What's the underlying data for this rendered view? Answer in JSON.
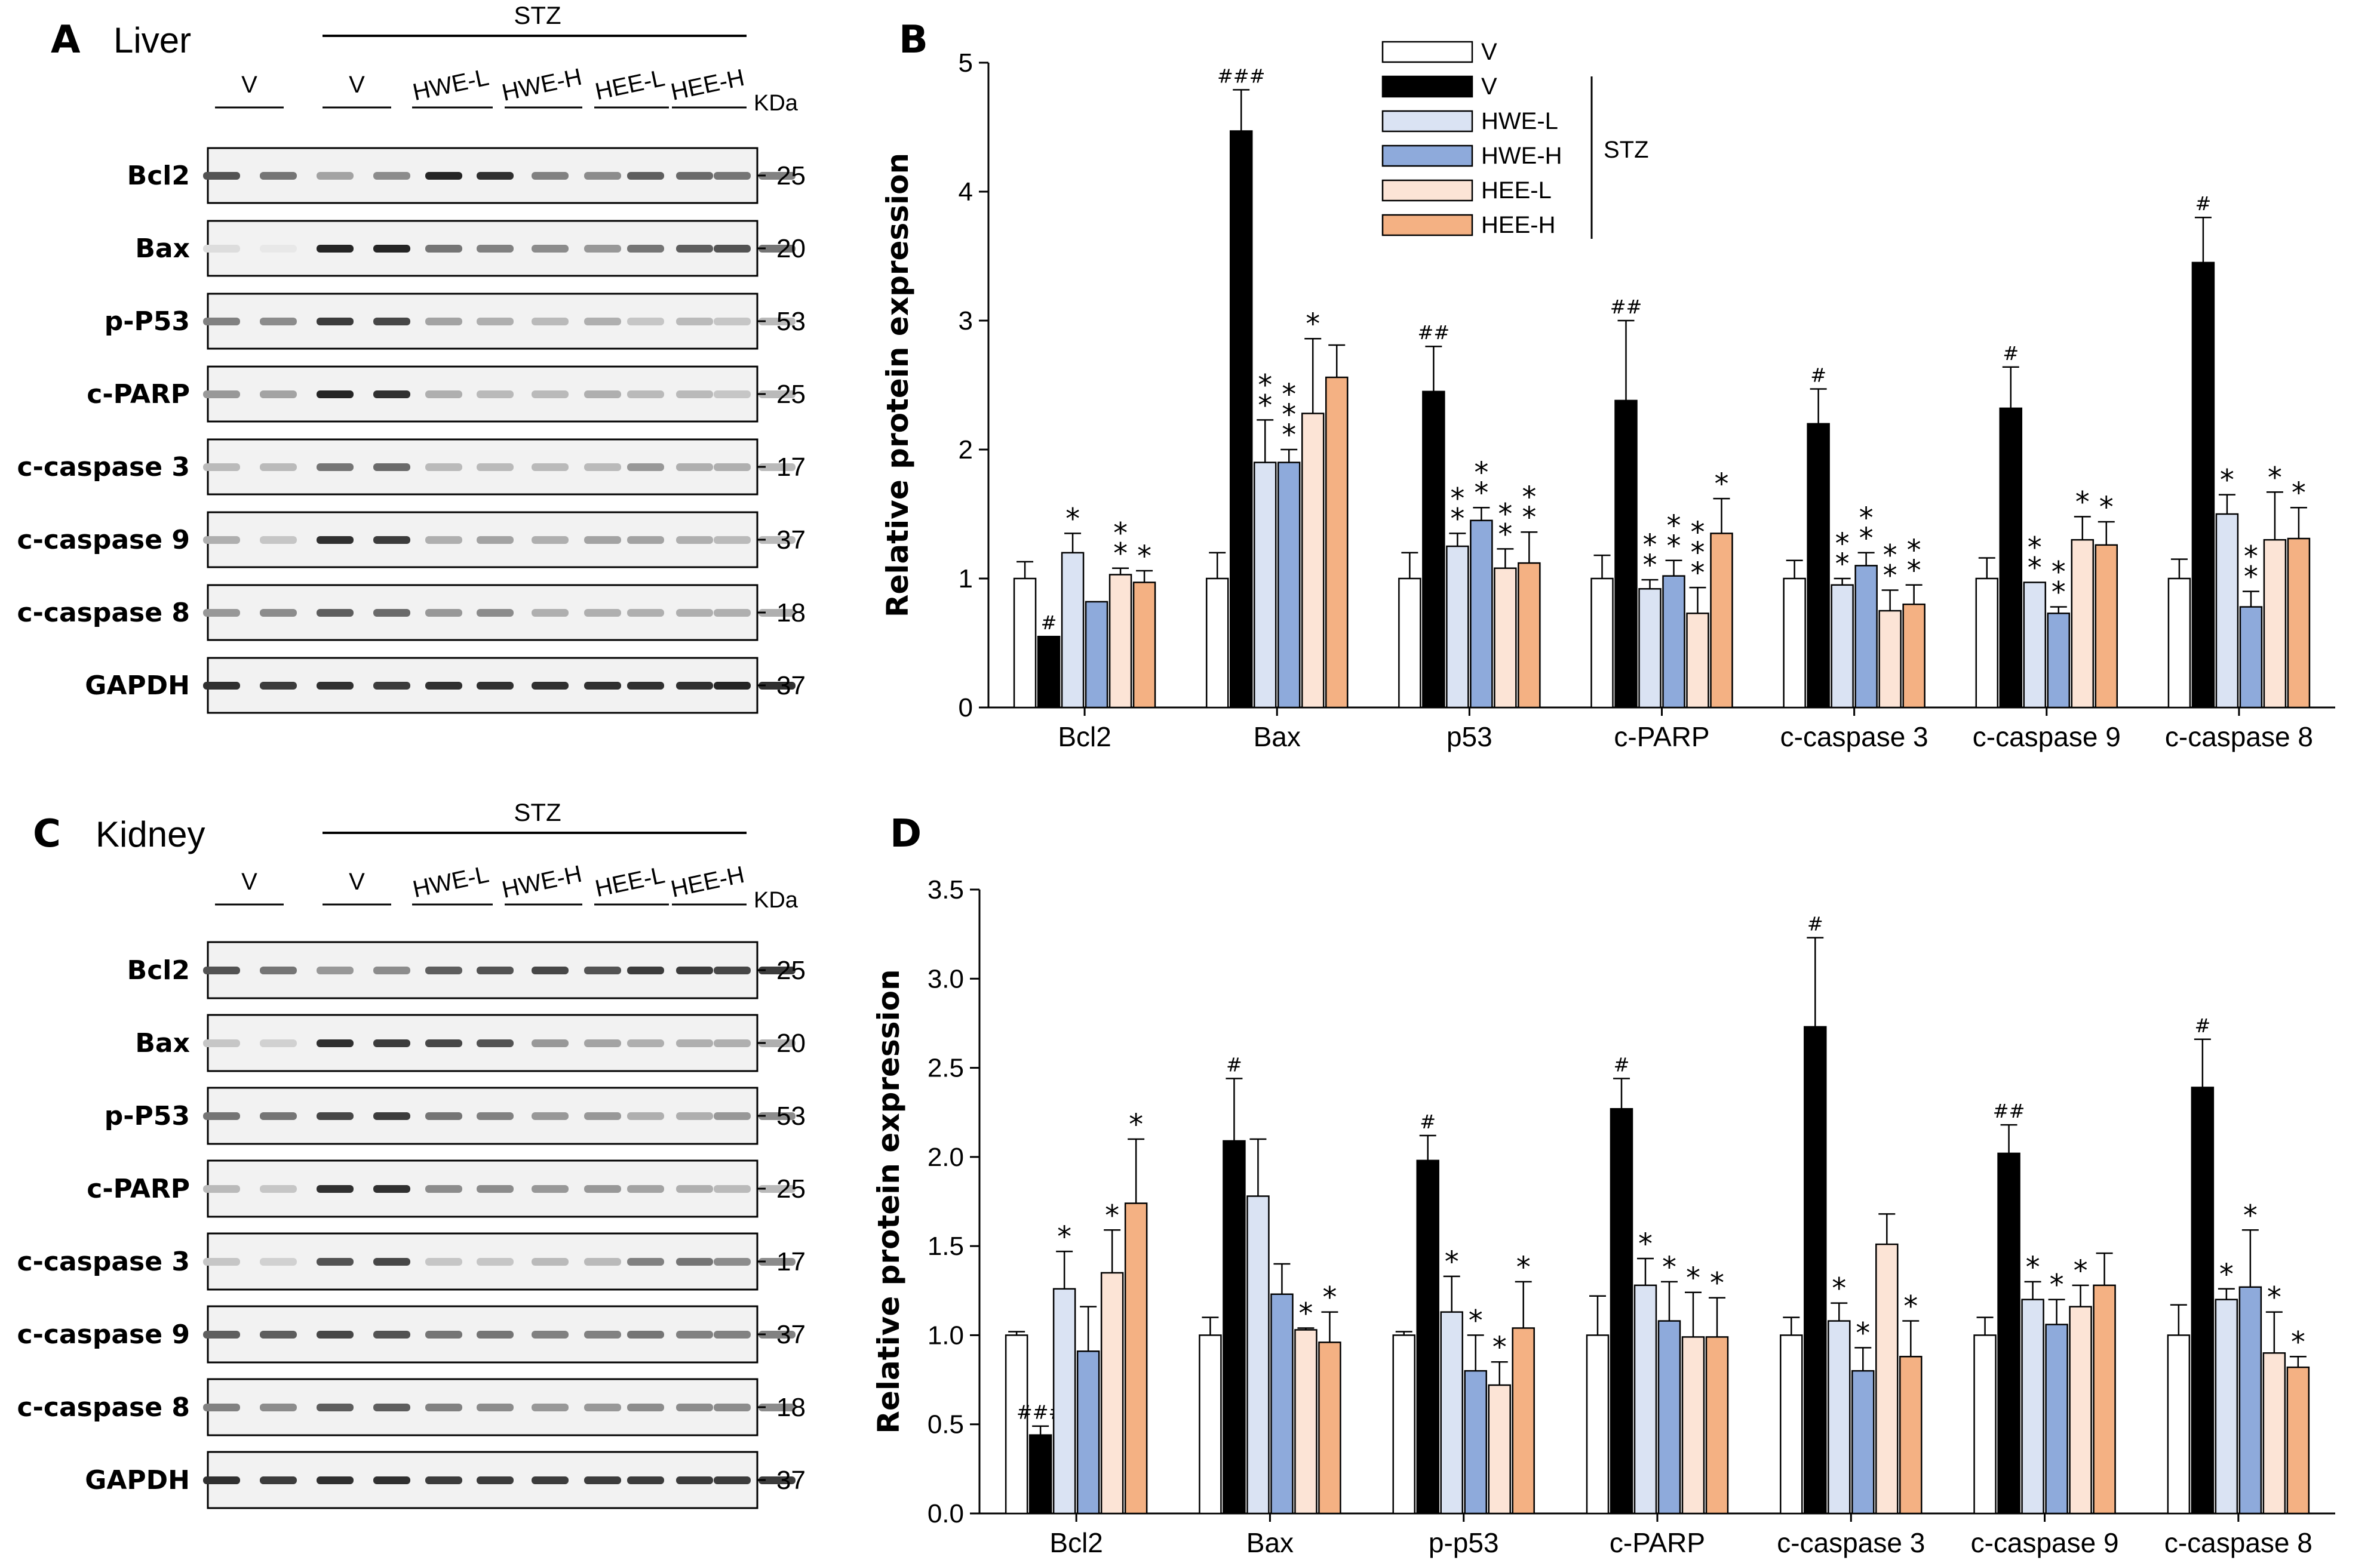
{
  "panels": {
    "A": {
      "letter": "A",
      "tissue": "Liver"
    },
    "B": {
      "letter": "B"
    },
    "C": {
      "letter": "C",
      "tissue": "Kidney"
    },
    "D": {
      "letter": "D"
    }
  },
  "blot_header": {
    "stz": "STZ",
    "groups": [
      "V",
      "V",
      "HWE-L",
      "HWE-H",
      "HEE-L",
      "HEE-H"
    ],
    "kda": "KDa"
  },
  "liver_blot": {
    "proteins": [
      "Bcl2",
      "Bax",
      "p-P53",
      "c-PARP",
      "c-caspase 3",
      "c-caspase 9",
      "c-caspase 8",
      "GAPDH"
    ],
    "kda": [
      "25",
      "20",
      "53",
      "25",
      "17",
      "37",
      "18",
      "37"
    ],
    "intensity": [
      [
        0.75,
        0.6,
        0.4,
        0.5,
        0.95,
        0.9,
        0.55,
        0.5,
        0.7,
        0.65,
        0.6,
        0.55
      ],
      [
        0.15,
        0.1,
        0.95,
        0.95,
        0.6,
        0.55,
        0.5,
        0.45,
        0.6,
        0.7,
        0.75,
        0.6
      ],
      [
        0.55,
        0.5,
        0.85,
        0.8,
        0.4,
        0.35,
        0.3,
        0.35,
        0.25,
        0.3,
        0.25,
        0.3
      ],
      [
        0.45,
        0.4,
        0.95,
        0.9,
        0.35,
        0.3,
        0.3,
        0.35,
        0.3,
        0.3,
        0.25,
        0.3
      ],
      [
        0.3,
        0.3,
        0.6,
        0.65,
        0.3,
        0.3,
        0.3,
        0.3,
        0.45,
        0.35,
        0.35,
        0.3
      ],
      [
        0.35,
        0.25,
        0.9,
        0.85,
        0.35,
        0.4,
        0.35,
        0.4,
        0.4,
        0.35,
        0.3,
        0.3
      ],
      [
        0.45,
        0.5,
        0.7,
        0.65,
        0.45,
        0.5,
        0.35,
        0.35,
        0.35,
        0.35,
        0.35,
        0.35
      ],
      [
        0.9,
        0.85,
        0.9,
        0.85,
        0.9,
        0.9,
        0.9,
        0.9,
        0.9,
        0.9,
        0.95,
        0.9
      ]
    ]
  },
  "kidney_blot": {
    "proteins": [
      "Bcl2",
      "Bax",
      "p-P53",
      "c-PARP",
      "c-caspase 3",
      "c-caspase 9",
      "c-caspase 8",
      "GAPDH"
    ],
    "kda": [
      "25",
      "20",
      "53",
      "25",
      "17",
      "37",
      "18",
      "37"
    ],
    "intensity": [
      [
        0.75,
        0.6,
        0.45,
        0.5,
        0.7,
        0.75,
        0.8,
        0.75,
        0.85,
        0.85,
        0.8,
        0.85
      ],
      [
        0.25,
        0.2,
        0.9,
        0.85,
        0.8,
        0.75,
        0.45,
        0.4,
        0.35,
        0.35,
        0.35,
        0.35
      ],
      [
        0.6,
        0.6,
        0.8,
        0.85,
        0.6,
        0.55,
        0.45,
        0.45,
        0.35,
        0.35,
        0.45,
        0.5
      ],
      [
        0.3,
        0.25,
        0.9,
        0.9,
        0.5,
        0.5,
        0.45,
        0.45,
        0.4,
        0.35,
        0.3,
        0.3
      ],
      [
        0.25,
        0.2,
        0.75,
        0.8,
        0.25,
        0.25,
        0.3,
        0.3,
        0.55,
        0.6,
        0.5,
        0.5
      ],
      [
        0.7,
        0.7,
        0.8,
        0.75,
        0.6,
        0.6,
        0.55,
        0.55,
        0.6,
        0.55,
        0.55,
        0.55
      ],
      [
        0.55,
        0.5,
        0.7,
        0.7,
        0.55,
        0.5,
        0.45,
        0.45,
        0.5,
        0.5,
        0.5,
        0.5
      ],
      [
        0.9,
        0.85,
        0.9,
        0.9,
        0.85,
        0.85,
        0.85,
        0.85,
        0.85,
        0.85,
        0.85,
        0.85
      ]
    ]
  },
  "colors": {
    "V": "#ffffff",
    "STZ_V": "#000000",
    "HWE-L": "#dae3f3",
    "HWE-H": "#8eaadb",
    "HEE-L": "#fce4d6",
    "HEE-H": "#f4b183"
  },
  "chart_data": [
    {
      "type": "bar",
      "panel": "B",
      "title": "",
      "xlabel": "",
      "ylabel": "Relative protein expression",
      "ylim": [
        0,
        5
      ],
      "yticks": [
        "0",
        "1",
        "2",
        "3",
        "4",
        "5"
      ],
      "categories": [
        "Bcl2",
        "Bax",
        "p53",
        "c-PARP",
        "c-caspase 3",
        "c-caspase 9",
        "c-caspase 8"
      ],
      "legend": {
        "entries": [
          "V",
          "V",
          "HWE-L",
          "HWE-H",
          "HEE-L",
          "HEE-H"
        ],
        "group_label": "STZ",
        "placement": "top-center"
      },
      "series": [
        {
          "name": "V",
          "values": [
            1.0,
            1.0,
            1.0,
            1.0,
            1.0,
            1.0,
            1.0
          ],
          "errors": [
            0.13,
            0.2,
            0.2,
            0.18,
            0.14,
            0.16,
            0.15
          ],
          "marks": [
            "",
            "",
            "",
            "",
            "",
            "",
            ""
          ]
        },
        {
          "name": "STZ V",
          "values": [
            0.55,
            4.47,
            2.45,
            2.38,
            2.2,
            2.32,
            3.45
          ],
          "errors": [
            0.0,
            0.32,
            0.35,
            0.62,
            0.27,
            0.32,
            0.35
          ],
          "marks": [
            "#",
            "###",
            "##",
            "##",
            "#",
            "#",
            "#"
          ]
        },
        {
          "name": "HWE-L",
          "values": [
            1.2,
            1.9,
            1.25,
            0.92,
            0.95,
            0.97,
            1.5
          ],
          "errors": [
            0.15,
            0.33,
            0.1,
            0.07,
            0.05,
            0.0,
            0.15
          ],
          "marks": [
            "*",
            "**",
            "**",
            "**",
            "**",
            "**",
            "*"
          ]
        },
        {
          "name": "HWE-H",
          "values": [
            0.82,
            1.9,
            1.45,
            1.02,
            1.1,
            0.73,
            0.78
          ],
          "errors": [
            0.0,
            0.1,
            0.1,
            0.12,
            0.1,
            0.05,
            0.12
          ],
          "marks": [
            "",
            "***",
            "**",
            "**",
            "**",
            "**",
            "**"
          ]
        },
        {
          "name": "HEE-L",
          "values": [
            1.03,
            2.28,
            1.08,
            0.73,
            0.75,
            1.3,
            1.3
          ],
          "errors": [
            0.05,
            0.58,
            0.15,
            0.2,
            0.16,
            0.18,
            0.37
          ],
          "marks": [
            "**",
            "*",
            "**",
            "***",
            "**",
            "*",
            "*"
          ]
        },
        {
          "name": "HEE-H",
          "values": [
            0.97,
            2.56,
            1.12,
            1.35,
            0.8,
            1.26,
            1.31
          ],
          "errors": [
            0.09,
            0.25,
            0.24,
            0.27,
            0.15,
            0.18,
            0.24
          ],
          "marks": [
            "*",
            "",
            "**",
            "*",
            "**",
            "*",
            "*"
          ]
        }
      ]
    },
    {
      "type": "bar",
      "panel": "D",
      "title": "",
      "xlabel": "",
      "ylabel": "Relative protein expression",
      "ylim": [
        0,
        3.5
      ],
      "yticks": [
        "0.0",
        "0.5",
        "1.0",
        "1.5",
        "2.0",
        "2.5",
        "3.0",
        "3.5"
      ],
      "categories": [
        "Bcl2",
        "Bax",
        "p-p53",
        "c-PARP",
        "c-caspase 3",
        "c-caspase 9",
        "c-caspase 8"
      ],
      "series": [
        {
          "name": "V",
          "values": [
            1.0,
            1.0,
            1.0,
            1.0,
            1.0,
            1.0,
            1.0
          ],
          "errors": [
            0.02,
            0.1,
            0.02,
            0.22,
            0.1,
            0.1,
            0.17
          ],
          "marks": [
            "",
            "",
            "",
            "",
            "",
            "",
            ""
          ]
        },
        {
          "name": "STZ V",
          "values": [
            0.44,
            2.09,
            1.98,
            2.27,
            2.73,
            2.02,
            2.39
          ],
          "errors": [
            0.05,
            0.35,
            0.14,
            0.17,
            0.5,
            0.16,
            0.27
          ],
          "marks": [
            "###",
            "#",
            "#",
            "#",
            "#",
            "##",
            "#"
          ]
        },
        {
          "name": "HWE-L",
          "values": [
            1.26,
            1.78,
            1.13,
            1.28,
            1.08,
            1.2,
            1.2
          ],
          "errors": [
            0.21,
            0.32,
            0.2,
            0.15,
            0.1,
            0.1,
            0.06
          ],
          "marks": [
            "*",
            "",
            "*",
            "*",
            "*",
            "*",
            "*"
          ]
        },
        {
          "name": "HWE-H",
          "values": [
            0.91,
            1.23,
            0.8,
            1.08,
            0.8,
            1.06,
            1.27
          ],
          "errors": [
            0.25,
            0.17,
            0.2,
            0.22,
            0.13,
            0.14,
            0.32
          ],
          "marks": [
            "",
            "",
            "*",
            "*",
            "*",
            "*",
            "*"
          ]
        },
        {
          "name": "HEE-L",
          "values": [
            1.35,
            1.03,
            0.72,
            0.99,
            1.51,
            1.16,
            0.9
          ],
          "errors": [
            0.24,
            0.01,
            0.13,
            0.25,
            0.17,
            0.12,
            0.23
          ],
          "marks": [
            "*",
            "*",
            "*",
            "*",
            "",
            "*",
            "*"
          ]
        },
        {
          "name": "HEE-H",
          "values": [
            1.74,
            0.96,
            1.04,
            0.99,
            0.88,
            1.28,
            0.82
          ],
          "errors": [
            0.36,
            0.17,
            0.26,
            0.22,
            0.2,
            0.18,
            0.06
          ],
          "marks": [
            "*",
            "*",
            "*",
            "*",
            "*",
            "",
            "*"
          ]
        }
      ]
    }
  ]
}
